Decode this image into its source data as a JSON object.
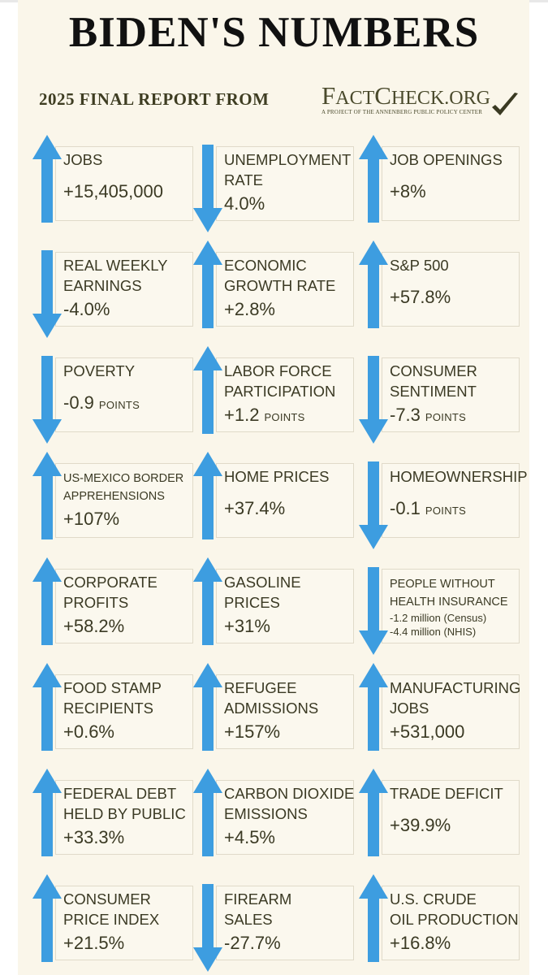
{
  "title": "BIDEN'S NUMBERS",
  "subtitle": "2025 FINAL REPORT FROM",
  "logo": {
    "name_big_1": "F",
    "name_small_1": "ACT",
    "name_big_2": "C",
    "name_small_2": "HECK",
    "name_small_3": ".ORG",
    "tagline": "A PROJECT OF THE ANNENBERG PUBLIC POLICY CENTER"
  },
  "colors": {
    "arrow": "#3d9de0",
    "text": "#3b3a24",
    "background": "#faf6ea"
  },
  "tiles": [
    {
      "lines": [
        "JOBS"
      ],
      "value": "+15,405,000",
      "unit": "",
      "dir": "up"
    },
    {
      "lines": [
        "UNEMPLOYMENT",
        "RATE"
      ],
      "value": "4.0%",
      "unit": "",
      "dir": "down"
    },
    {
      "lines": [
        "JOB OPENINGS"
      ],
      "value": "+8%",
      "unit": "",
      "dir": "up"
    },
    {
      "lines": [
        "REAL WEEKLY",
        "EARNINGS"
      ],
      "value": "-4.0%",
      "unit": "",
      "dir": "down"
    },
    {
      "lines": [
        "ECONOMIC",
        "GROWTH RATE"
      ],
      "value": "+2.8%",
      "unit": "",
      "dir": "up"
    },
    {
      "lines": [
        "S&P 500"
      ],
      "value": "+57.8%",
      "unit": "",
      "dir": "up"
    },
    {
      "lines": [
        "POVERTY"
      ],
      "value": "-0.9",
      "unit": "POINTS",
      "dir": "down"
    },
    {
      "lines": [
        "LABOR FORCE",
        "PARTICIPATION"
      ],
      "value": "+1.2",
      "unit": "POINTS",
      "dir": "up"
    },
    {
      "lines": [
        "CONSUMER",
        "SENTIMENT"
      ],
      "value": "-7.3",
      "unit": "POINTS",
      "dir": "down"
    },
    {
      "lines": [
        "US-MEXICO BORDER",
        "APPREHENSIONS"
      ],
      "value": "+107%",
      "unit": "",
      "dir": "up",
      "small": true
    },
    {
      "lines": [
        "HOME PRICES"
      ],
      "value": "+37.4%",
      "unit": "",
      "dir": "up"
    },
    {
      "lines": [
        "HOMEOWNERSHIP"
      ],
      "value": "-0.1",
      "unit": "POINTS",
      "dir": "down"
    },
    {
      "lines": [
        "CORPORATE",
        "PROFITS"
      ],
      "value": "+58.2%",
      "unit": "",
      "dir": "up"
    },
    {
      "lines": [
        "GASOLINE",
        "PRICES"
      ],
      "value": "+31%",
      "unit": "",
      "dir": "up"
    },
    {
      "lines": [
        "PEOPLE WITHOUT",
        "HEALTH INSURANCE"
      ],
      "value": "",
      "unit": "",
      "dir": "down",
      "small": true,
      "subs": [
        "-1.2 million (Census)",
        "-4.4 million (NHIS)"
      ]
    },
    {
      "lines": [
        "FOOD STAMP",
        "RECIPIENTS"
      ],
      "value": "+0.6%",
      "unit": "",
      "dir": "up"
    },
    {
      "lines": [
        "REFUGEE",
        "ADMISSIONS"
      ],
      "value": "+157%",
      "unit": "",
      "dir": "up"
    },
    {
      "lines": [
        "MANUFACTURING",
        "JOBS"
      ],
      "value": "+531,000",
      "unit": "",
      "dir": "up"
    },
    {
      "lines": [
        "FEDERAL DEBT",
        "HELD BY PUBLIC"
      ],
      "value": "+33.3%",
      "unit": "",
      "dir": "up"
    },
    {
      "lines": [
        "CARBON DIOXIDE",
        "EMISSIONS"
      ],
      "value": "+4.5%",
      "unit": "",
      "dir": "up"
    },
    {
      "lines": [
        "TRADE DEFICIT"
      ],
      "value": "+39.9%",
      "unit": "",
      "dir": "up"
    },
    {
      "lines": [
        "CONSUMER",
        "PRICE INDEX"
      ],
      "value": "+21.5%",
      "unit": "",
      "dir": "up"
    },
    {
      "lines": [
        "FIREARM",
        "SALES"
      ],
      "value": "-27.7%",
      "unit": "",
      "dir": "down"
    },
    {
      "lines": [
        "U.S. CRUDE",
        "OIL PRODUCTION"
      ],
      "value": "+16.8%",
      "unit": "",
      "dir": "up"
    }
  ]
}
